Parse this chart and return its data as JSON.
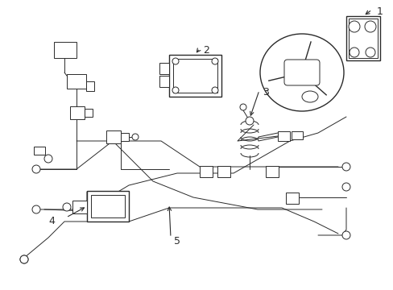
{
  "bg_color": "#ffffff",
  "line_color": "#2a2a2a",
  "lw_main": 1.0,
  "lw_thin": 0.7,
  "label_fontsize": 8,
  "figsize": [
    4.89,
    3.6
  ],
  "dpi": 100
}
